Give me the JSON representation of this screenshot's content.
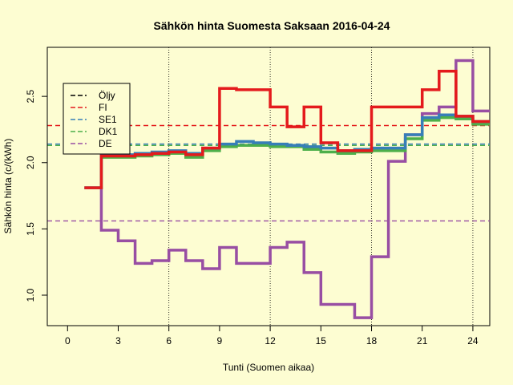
{
  "chart_data": {
    "type": "line",
    "title": "Sähkön hinta Suomesta Saksaan 2016-04-24",
    "xlabel": "Tunti (Suomen aikaa)",
    "ylabel": "Sähkön hinta (c/(kWh)",
    "xlim": [
      -1.2,
      25
    ],
    "ylim": [
      0.77,
      2.87
    ],
    "x_ticks": [
      0,
      3,
      6,
      9,
      12,
      15,
      18,
      21,
      24
    ],
    "y_ticks": [
      1.0,
      1.5,
      2.0,
      2.5
    ],
    "y_tick_labels": [
      "1.0",
      "1.5",
      "2.0",
      "2.5"
    ],
    "vlines": [
      6,
      12,
      18,
      24
    ],
    "legend_position": "top-left",
    "legend": [
      {
        "name": "Öljy",
        "color": "#000000"
      },
      {
        "name": "FI",
        "color": "#e41a1c"
      },
      {
        "name": "SE1",
        "color": "#377eb8"
      },
      {
        "name": "DK1",
        "color": "#4daf4a"
      },
      {
        "name": "DE",
        "color": "#984ea3"
      }
    ],
    "hlines": [
      {
        "name": "FI",
        "value": 2.28,
        "color": "#e41a1c"
      },
      {
        "name": "SE1",
        "value": 2.14,
        "color": "#377eb8"
      },
      {
        "name": "DK1",
        "value": 2.13,
        "color": "#4daf4a"
      },
      {
        "name": "DE",
        "value": 1.56,
        "color": "#984ea3"
      }
    ],
    "x": [
      1,
      2,
      3,
      4,
      5,
      6,
      7,
      8,
      9,
      10,
      11,
      12,
      13,
      14,
      15,
      16,
      17,
      18,
      19,
      20,
      21,
      22,
      23,
      24,
      25
    ],
    "series": [
      {
        "name": "DE",
        "color": "#984ea3",
        "values": [
          1.81,
          1.49,
          1.41,
          1.24,
          1.26,
          1.34,
          1.26,
          1.2,
          1.36,
          1.24,
          1.24,
          1.36,
          1.4,
          1.17,
          0.93,
          0.93,
          0.83,
          1.29,
          2.01,
          2.21,
          2.37,
          2.42,
          2.77,
          2.39,
          2.39
        ]
      },
      {
        "name": "DK1",
        "color": "#4daf4a",
        "values": [
          1.81,
          2.04,
          2.04,
          2.05,
          2.06,
          2.07,
          2.04,
          2.09,
          2.12,
          2.13,
          2.13,
          2.12,
          2.12,
          2.1,
          2.08,
          2.07,
          2.08,
          2.09,
          2.09,
          2.18,
          2.32,
          2.34,
          2.33,
          2.29,
          2.29
        ]
      },
      {
        "name": "SE1",
        "color": "#377eb8",
        "values": [
          1.81,
          2.06,
          2.06,
          2.07,
          2.08,
          2.09,
          2.07,
          2.11,
          2.14,
          2.16,
          2.15,
          2.14,
          2.13,
          2.12,
          2.11,
          2.09,
          2.1,
          2.11,
          2.11,
          2.21,
          2.34,
          2.36,
          2.35,
          2.31,
          2.31
        ]
      },
      {
        "name": "FI",
        "color": "#e41a1c",
        "values": [
          1.81,
          2.05,
          2.05,
          2.06,
          2.07,
          2.08,
          2.06,
          2.11,
          2.56,
          2.55,
          2.55,
          2.42,
          2.27,
          2.42,
          2.15,
          2.09,
          2.09,
          2.42,
          2.42,
          2.42,
          2.55,
          2.69,
          2.35,
          2.31,
          2.31
        ]
      }
    ]
  }
}
